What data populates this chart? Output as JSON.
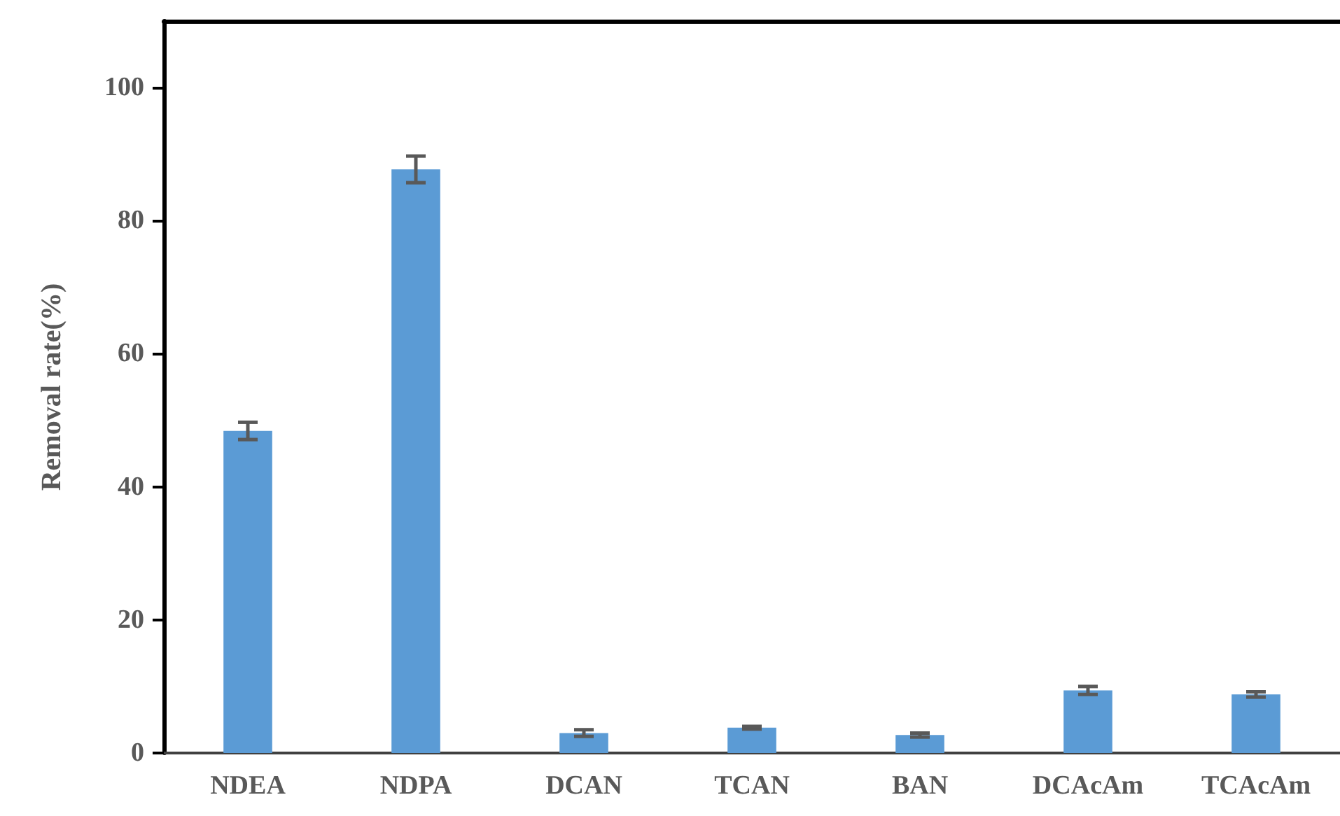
{
  "chart_data": {
    "type": "bar",
    "ylabel": "Removal rate(%)",
    "categories": [
      "NDEA",
      "NDPA",
      "DCAN",
      "TCAN",
      "BAN",
      "DCAcAm",
      "TCAcAm"
    ],
    "values": [
      48.4,
      87.7,
      3.0,
      3.8,
      2.7,
      9.4,
      8.8
    ],
    "errors": [
      1.3,
      2.0,
      0.5,
      0.2,
      0.3,
      0.6,
      0.4
    ],
    "color": "#5b9bd5",
    "ylim": [
      0,
      110
    ],
    "yticks": [
      0,
      20,
      40,
      60,
      80,
      100
    ],
    "grid": false
  }
}
